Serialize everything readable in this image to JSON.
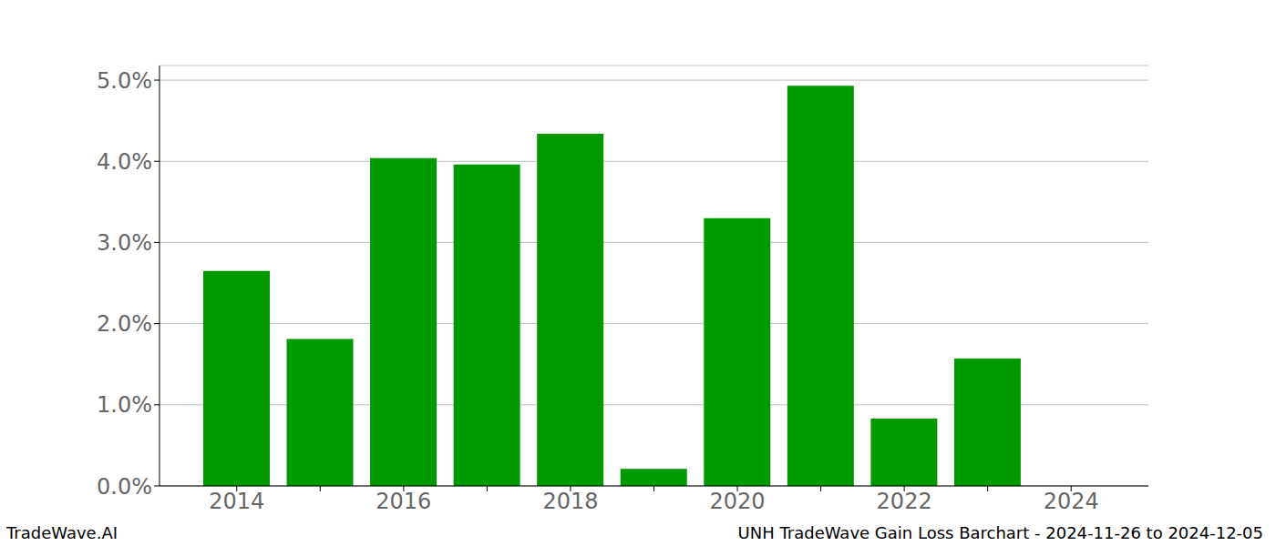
{
  "chart_data": {
    "type": "bar",
    "title": "UNH TradeWave Gain Loss Barchart - 2024-11-26 to 2024-12-05",
    "annotations": [
      "TradeWave.AI"
    ],
    "categories": [
      "2014",
      null,
      "2016",
      null,
      "2018",
      null,
      "2020",
      null,
      "2022",
      null,
      "2024"
    ],
    "values": [
      2.65,
      1.81,
      4.04,
      3.96,
      4.34,
      0.21,
      3.3,
      4.93,
      0.83,
      1.57,
      null
    ],
    "color": "#009900",
    "ylim": [
      0,
      5.18
    ],
    "yticks": [
      {
        "value": 0,
        "label": "0.0%"
      },
      {
        "value": 1,
        "label": "1.0%"
      },
      {
        "value": 2,
        "label": "2.0%"
      },
      {
        "value": 3,
        "label": "3.0%"
      },
      {
        "value": 4,
        "label": "4.0%"
      },
      {
        "value": 5,
        "label": "5.0%"
      }
    ],
    "grid": true
  }
}
